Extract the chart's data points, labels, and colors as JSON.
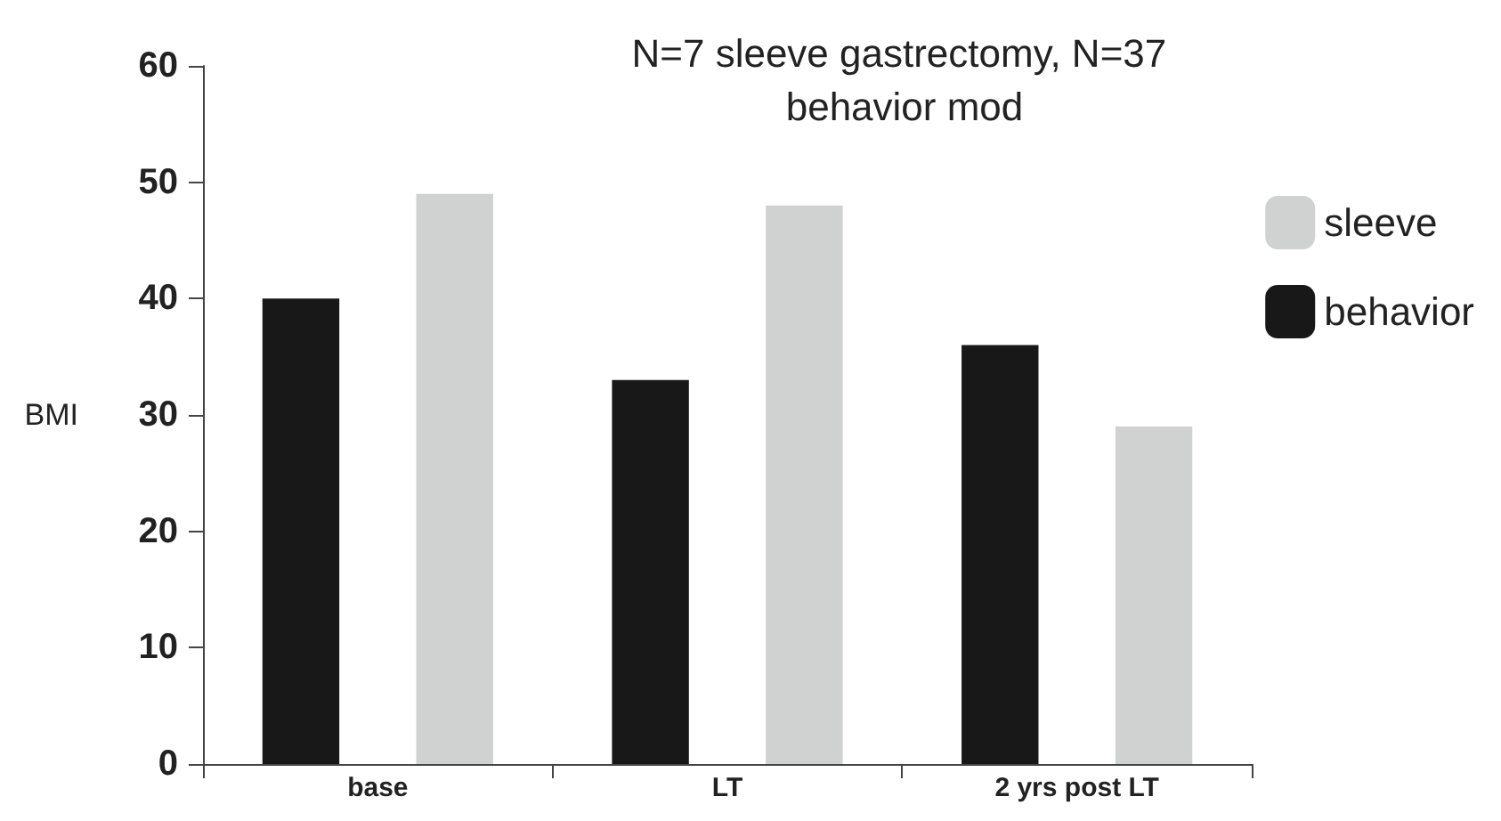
{
  "chart_data": {
    "type": "bar",
    "title": "N=7 sleeve gastrectomy, N=37 behavior mod",
    "ylabel": "BMI",
    "categories": [
      "base",
      "LT",
      "2 yrs post LT"
    ],
    "series": [
      {
        "name": "behavior",
        "color": "#181818",
        "values": [
          40,
          33,
          36
        ]
      },
      {
        "name": "sleeve",
        "color": "#d0d2d1",
        "values": [
          49,
          48,
          29
        ]
      }
    ],
    "ylim": [
      0,
      60
    ],
    "yticks": [
      0,
      10,
      20,
      30,
      40,
      50,
      60
    ],
    "grid": false,
    "legend": "right"
  }
}
